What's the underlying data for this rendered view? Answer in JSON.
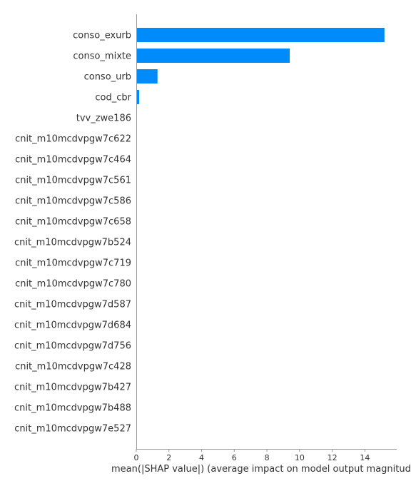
{
  "chart_data": {
    "type": "bar",
    "orientation": "horizontal",
    "categories": [
      "conso_exurb",
      "conso_mixte",
      "conso_urb",
      "cod_cbr",
      "tvv_zwe186",
      "cnit_m10mcdvpgw7c622",
      "cnit_m10mcdvpgw7c464",
      "cnit_m10mcdvpgw7c561",
      "cnit_m10mcdvpgw7c586",
      "cnit_m10mcdvpgw7c658",
      "cnit_m10mcdvpgw7b524",
      "cnit_m10mcdvpgw7c719",
      "cnit_m10mcdvpgw7c780",
      "cnit_m10mcdvpgw7d587",
      "cnit_m10mcdvpgw7d684",
      "cnit_m10mcdvpgw7d756",
      "cnit_m10mcdvpgw7c428",
      "cnit_m10mcdvpgw7b427",
      "cnit_m10mcdvpgw7b488",
      "cnit_m10mcdvpgw7e527"
    ],
    "values": [
      15.2,
      9.4,
      1.3,
      0.18,
      0,
      0,
      0,
      0,
      0,
      0,
      0,
      0,
      0,
      0,
      0,
      0,
      0,
      0,
      0,
      0
    ],
    "xlim": [
      0,
      15.95
    ],
    "xticks": [
      "0",
      "2",
      "4",
      "6",
      "8",
      "10",
      "12",
      "14"
    ],
    "xlabel": "mean(|SHAP value|) (average impact on model output magnitude)",
    "ylabel": "",
    "title": "",
    "grid": false,
    "bar_color": "#008bfb",
    "axis_color": "#999999",
    "text_color": "#333333"
  }
}
